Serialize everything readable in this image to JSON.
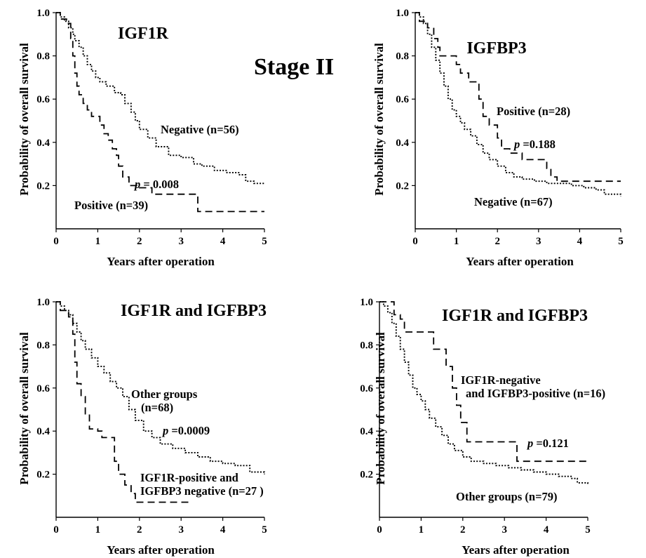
{
  "figure": {
    "stage_label": "Stage II"
  },
  "chart_data": [
    {
      "type": "line",
      "title": "IGF1R",
      "xlabel": "Years after operation",
      "ylabel": "Probability of overall survival",
      "xlim": [
        0,
        5
      ],
      "ylim": [
        0,
        1.0
      ],
      "xticks": [
        "0",
        "1",
        "2",
        "3",
        "4",
        "5"
      ],
      "yticks": [
        "0.2",
        "0.4",
        "0.6",
        "0.8",
        "1.0"
      ],
      "series": [
        {
          "name": "Negative (n=56)",
          "style": "dotted",
          "x": [
            0,
            0.1,
            0.2,
            0.3,
            0.4,
            0.45,
            0.55,
            0.65,
            0.75,
            0.85,
            0.95,
            1.05,
            1.2,
            1.4,
            1.55,
            1.65,
            1.8,
            1.9,
            2.0,
            2.2,
            2.4,
            2.7,
            3.0,
            3.3,
            3.5,
            3.8,
            4.1,
            4.4,
            4.55,
            4.75,
            5.0
          ],
          "y": [
            1.0,
            0.98,
            0.96,
            0.93,
            0.9,
            0.87,
            0.84,
            0.8,
            0.76,
            0.73,
            0.7,
            0.68,
            0.66,
            0.63,
            0.62,
            0.58,
            0.54,
            0.5,
            0.46,
            0.42,
            0.38,
            0.34,
            0.33,
            0.3,
            0.29,
            0.27,
            0.26,
            0.25,
            0.22,
            0.21,
            0.21
          ]
        },
        {
          "name": "Positive (n=39)",
          "style": "dashed",
          "x": [
            0,
            0.1,
            0.25,
            0.35,
            0.4,
            0.45,
            0.5,
            0.55,
            0.65,
            0.75,
            0.85,
            1.05,
            1.15,
            1.25,
            1.35,
            1.45,
            1.5,
            1.6,
            1.75,
            2.0,
            2.3,
            3.35,
            3.4,
            5.0
          ],
          "y": [
            1.0,
            0.97,
            0.95,
            0.88,
            0.8,
            0.72,
            0.66,
            0.62,
            0.58,
            0.55,
            0.52,
            0.48,
            0.44,
            0.41,
            0.37,
            0.34,
            0.29,
            0.24,
            0.2,
            0.19,
            0.16,
            0.16,
            0.08,
            0.08
          ]
        }
      ],
      "annotations": [
        "p = 0.008"
      ]
    },
    {
      "type": "line",
      "title": "IGFBP3",
      "xlabel": "Years after operation",
      "ylabel": "Probability of overall survival",
      "xlim": [
        0,
        5
      ],
      "ylim": [
        0,
        1.0
      ],
      "xticks": [
        "0",
        "1",
        "2",
        "3",
        "4",
        "5"
      ],
      "yticks": [
        "0.2",
        "0.4",
        "0.6",
        "0.8",
        "1.0"
      ],
      "series": [
        {
          "name": "Positive (n=28)",
          "style": "dashed",
          "x": [
            0,
            0.1,
            0.3,
            0.45,
            0.55,
            0.6,
            1.0,
            1.1,
            1.3,
            1.55,
            1.65,
            1.8,
            2.0,
            2.1,
            2.3,
            2.6,
            3.2,
            3.3,
            3.45,
            5.0
          ],
          "y": [
            1.0,
            0.96,
            0.93,
            0.88,
            0.84,
            0.8,
            0.76,
            0.72,
            0.68,
            0.6,
            0.52,
            0.48,
            0.42,
            0.37,
            0.35,
            0.32,
            0.28,
            0.24,
            0.22,
            0.22
          ]
        },
        {
          "name": "Negative (n=67)",
          "style": "dotted",
          "x": [
            0,
            0.1,
            0.2,
            0.3,
            0.4,
            0.5,
            0.6,
            0.7,
            0.8,
            0.9,
            1.0,
            1.1,
            1.2,
            1.35,
            1.5,
            1.65,
            1.8,
            2.0,
            2.2,
            2.4,
            2.6,
            2.9,
            3.2,
            3.5,
            3.8,
            4.1,
            4.4,
            4.6,
            5.0
          ],
          "y": [
            1.0,
            0.98,
            0.95,
            0.9,
            0.84,
            0.78,
            0.72,
            0.66,
            0.6,
            0.55,
            0.52,
            0.49,
            0.46,
            0.43,
            0.39,
            0.35,
            0.32,
            0.29,
            0.26,
            0.24,
            0.23,
            0.22,
            0.21,
            0.21,
            0.2,
            0.19,
            0.18,
            0.16,
            0.15
          ]
        }
      ],
      "annotations": [
        "p =0.188"
      ]
    },
    {
      "type": "line",
      "title": "IGF1R and IGFBP3",
      "xlabel": "Years after operation",
      "ylabel": "Probability of overall survival",
      "xlim": [
        0,
        5
      ],
      "ylim": [
        0,
        1.0
      ],
      "xticks": [
        "0",
        "1",
        "2",
        "3",
        "4",
        "5"
      ],
      "yticks": [
        "0.2",
        "0.4",
        "0.6",
        "0.8",
        "1.0"
      ],
      "series": [
        {
          "name": "Other groups (n=68)",
          "style": "dotted",
          "x": [
            0,
            0.1,
            0.2,
            0.3,
            0.4,
            0.5,
            0.6,
            0.7,
            0.85,
            1.0,
            1.15,
            1.3,
            1.45,
            1.6,
            1.75,
            1.9,
            2.1,
            2.3,
            2.5,
            2.8,
            3.1,
            3.4,
            3.7,
            4.0,
            4.3,
            4.55,
            4.65,
            5.0
          ],
          "y": [
            1.0,
            0.98,
            0.96,
            0.94,
            0.9,
            0.86,
            0.82,
            0.78,
            0.74,
            0.7,
            0.67,
            0.63,
            0.6,
            0.56,
            0.5,
            0.45,
            0.4,
            0.37,
            0.34,
            0.32,
            0.3,
            0.28,
            0.26,
            0.25,
            0.24,
            0.24,
            0.21,
            0.2
          ]
        },
        {
          "name": "IGF1R-positive and IGFBP3 negative (n=27 )",
          "style": "dashed",
          "x": [
            0,
            0.1,
            0.3,
            0.4,
            0.45,
            0.5,
            0.6,
            0.7,
            0.8,
            1.0,
            1.1,
            1.4,
            1.5,
            1.65,
            1.8,
            1.9,
            3.25
          ],
          "y": [
            1.0,
            0.96,
            0.93,
            0.85,
            0.72,
            0.62,
            0.56,
            0.48,
            0.41,
            0.4,
            0.37,
            0.26,
            0.2,
            0.15,
            0.11,
            0.07,
            0.07
          ]
        }
      ],
      "annotations": [
        "p =0.0009"
      ]
    },
    {
      "type": "line",
      "title": "IGF1R and IGFBP3",
      "xlabel": "Years after operation",
      "ylabel": "Probability of overall survival",
      "xlim": [
        0,
        5
      ],
      "ylim": [
        0,
        1.0
      ],
      "xticks": [
        "0",
        "1",
        "2",
        "3",
        "4",
        "5"
      ],
      "yticks": [
        "0.2",
        "0.4",
        "0.6",
        "0.8",
        "1.0"
      ],
      "series": [
        {
          "name": "IGF1R-negative and IGFBP3-positive (n=16)",
          "style": "dashed",
          "x": [
            0,
            0.35,
            0.5,
            0.6,
            1.2,
            1.3,
            1.6,
            1.75,
            1.85,
            1.95,
            2.1,
            3.2,
            3.3,
            5.0
          ],
          "y": [
            1.0,
            0.94,
            0.92,
            0.86,
            0.86,
            0.78,
            0.7,
            0.6,
            0.52,
            0.44,
            0.35,
            0.35,
            0.26,
            0.26
          ]
        },
        {
          "name": "Other groups (n=79)",
          "style": "dotted",
          "x": [
            0,
            0.1,
            0.2,
            0.3,
            0.4,
            0.5,
            0.6,
            0.7,
            0.8,
            0.9,
            1.0,
            1.1,
            1.2,
            1.35,
            1.5,
            1.65,
            1.8,
            2.0,
            2.2,
            2.5,
            2.8,
            3.1,
            3.4,
            3.7,
            4.0,
            4.3,
            4.6,
            4.75,
            5.0
          ],
          "y": [
            1.0,
            0.98,
            0.95,
            0.9,
            0.84,
            0.78,
            0.72,
            0.66,
            0.6,
            0.57,
            0.54,
            0.5,
            0.46,
            0.42,
            0.38,
            0.34,
            0.31,
            0.28,
            0.26,
            0.25,
            0.24,
            0.23,
            0.22,
            0.21,
            0.2,
            0.19,
            0.18,
            0.16,
            0.15
          ]
        }
      ],
      "annotations": [
        "p =0.121"
      ]
    }
  ]
}
